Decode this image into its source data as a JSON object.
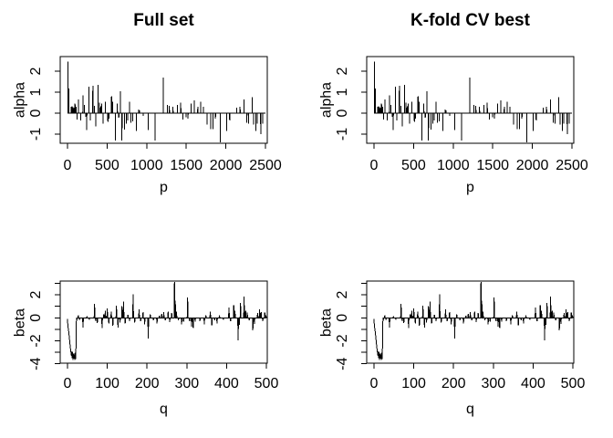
{
  "figure": {
    "background": "#ffffff",
    "stroke_color": "#000000",
    "text_color": "#000000"
  },
  "chart_data": {
    "layout": "2x2-grid",
    "grid": false,
    "legend": "none",
    "panels": [
      {
        "pos": "top-left",
        "title": "Full set",
        "xlabel": "p",
        "ylabel": "alpha",
        "series_ref": "alpha"
      },
      {
        "pos": "top-right",
        "title": "K-fold CV best",
        "xlabel": "p",
        "ylabel": "alpha",
        "series_ref": "alpha"
      },
      {
        "pos": "bottom-left",
        "title": "",
        "xlabel": "q",
        "ylabel": "beta",
        "series_ref": "beta"
      },
      {
        "pos": "bottom-right",
        "title": "",
        "xlabel": "q",
        "ylabel": "beta",
        "series_ref": "beta"
      }
    ],
    "series": {
      "alpha": {
        "type": "line",
        "style": "spike-train (type='h'-like, baseline 0)",
        "xlim": [
          0,
          2500
        ],
        "ylim": [
          -1.43,
          2.7
        ],
        "x_ticks": [
          0,
          500,
          1000,
          1500,
          2000,
          2500
        ],
        "y_ticks": [
          -1,
          0,
          1,
          2
        ],
        "y_tick_labels": [
          "-1",
          "0",
          "1",
          "2"
        ],
        "n_points": 2500,
        "baseline": 0,
        "spikes": [
          [
            5,
            2.45
          ],
          [
            15,
            1.18
          ],
          [
            48,
            0.3
          ],
          [
            60,
            0.32
          ],
          [
            72,
            0.28
          ],
          [
            85,
            0.25
          ],
          [
            95,
            0.45
          ],
          [
            110,
            0.3
          ],
          [
            122,
            -0.3
          ],
          [
            137,
            0.65
          ],
          [
            168,
            -0.35
          ],
          [
            194,
            0.85
          ],
          [
            213,
            0.4
          ],
          [
            230,
            -0.18
          ],
          [
            244,
            -0.8
          ],
          [
            270,
            1.25
          ],
          [
            290,
            -0.35
          ],
          [
            320,
            1.3
          ],
          [
            338,
            0.35
          ],
          [
            357,
            -0.62
          ],
          [
            385,
            1.35
          ],
          [
            402,
            0.5
          ],
          [
            418,
            0.32
          ],
          [
            430,
            0.45
          ],
          [
            449,
            -0.5
          ],
          [
            480,
            0.55
          ],
          [
            510,
            -0.42
          ],
          [
            525,
            -0.25
          ],
          [
            556,
            0.8
          ],
          [
            572,
            0.55
          ],
          [
            605,
            -1.3
          ],
          [
            630,
            0.45
          ],
          [
            648,
            -0.22
          ],
          [
            670,
            1.05
          ],
          [
            688,
            -1.3
          ],
          [
            719,
            -0.78
          ],
          [
            745,
            -0.5
          ],
          [
            762,
            -0.35
          ],
          [
            784,
            0.55
          ],
          [
            800,
            -0.45
          ],
          [
            822,
            -0.4
          ],
          [
            868,
            -0.85
          ],
          [
            898,
            0.18
          ],
          [
            912,
            0.14
          ],
          [
            958,
            -0.12
          ],
          [
            1020,
            -0.8
          ],
          [
            1105,
            -1.3
          ],
          [
            1210,
            1.7
          ],
          [
            1260,
            0.4
          ],
          [
            1287,
            0.35
          ],
          [
            1333,
            0.3
          ],
          [
            1390,
            0.4
          ],
          [
            1431,
            0.5
          ],
          [
            1457,
            -0.3
          ],
          [
            1496,
            -0.2
          ],
          [
            1523,
            -0.25
          ],
          [
            1560,
            0.45
          ],
          [
            1600,
            0.6
          ],
          [
            1645,
            0.3
          ],
          [
            1683,
            0.55
          ],
          [
            1716,
            0.3
          ],
          [
            1763,
            -0.55
          ],
          [
            1808,
            -0.75
          ],
          [
            1839,
            -0.75
          ],
          [
            1869,
            -0.25
          ],
          [
            1930,
            -1.4
          ],
          [
            2010,
            -0.85
          ],
          [
            2048,
            -0.35
          ],
          [
            2136,
            0.25
          ],
          [
            2180,
            0.3
          ],
          [
            2231,
            0.65
          ],
          [
            2266,
            -0.45
          ],
          [
            2288,
            -0.5
          ],
          [
            2333,
            0.75
          ],
          [
            2352,
            -0.55
          ],
          [
            2379,
            -0.85
          ],
          [
            2395,
            -0.5
          ],
          [
            2440,
            -1.0
          ],
          [
            2467,
            -0.5
          ]
        ]
      },
      "beta": {
        "type": "line",
        "style": "spike-train (type='h'-like, baseline 0)",
        "xlim": [
          0,
          500
        ],
        "ylim": [
          -3.95,
          3.2
        ],
        "x_ticks": [
          0,
          100,
          200,
          300,
          400,
          500
        ],
        "y_ticks": [
          -4,
          -3,
          -2,
          -1,
          0,
          1,
          2,
          3
        ],
        "y_tick_labels": [
          "-4",
          "",
          "-2",
          "",
          "0",
          "",
          "2",
          ""
        ],
        "n_points": 500,
        "baseline": 0,
        "spikes": [
          [
            0,
            -0.1
          ],
          [
            1,
            -0.75
          ],
          [
            2,
            -0.95
          ],
          [
            3,
            -1.2
          ],
          [
            4,
            -1.5
          ],
          [
            5,
            -1.85
          ],
          [
            6,
            -2.2
          ],
          [
            7,
            -2.55
          ],
          [
            8,
            -2.85
          ],
          [
            9,
            -3.1
          ],
          [
            10,
            -3.3
          ],
          [
            11,
            -2.9
          ],
          [
            12,
            -3.5
          ],
          [
            13,
            -3.0
          ],
          [
            14,
            -3.65
          ],
          [
            15,
            -3.1
          ],
          [
            16,
            -3.55
          ],
          [
            17,
            -3.2
          ],
          [
            18,
            -3.65
          ],
          [
            19,
            -3.05
          ],
          [
            20,
            -3.6
          ],
          [
            21,
            -3.3
          ],
          [
            22,
            -0.45
          ],
          [
            24,
            -0.15
          ],
          [
            27,
            0.2
          ],
          [
            30,
            -0.12
          ],
          [
            39,
            -0.85
          ],
          [
            49,
            0.15
          ],
          [
            55,
            -0.18
          ],
          [
            68,
            1.2
          ],
          [
            71,
            -0.3
          ],
          [
            75,
            -0.45
          ],
          [
            87,
            -0.9
          ],
          [
            91,
            0.3
          ],
          [
            95,
            0.6
          ],
          [
            100,
            0.8
          ],
          [
            104,
            -0.5
          ],
          [
            110,
            0.55
          ],
          [
            114,
            -0.7
          ],
          [
            123,
            1.05
          ],
          [
            127,
            -0.85
          ],
          [
            132,
            -0.4
          ],
          [
            137,
            1.0
          ],
          [
            141,
            1.4
          ],
          [
            145,
            -0.5
          ],
          [
            152,
            0.25
          ],
          [
            156,
            -0.28
          ],
          [
            165,
            2.05
          ],
          [
            169,
            -0.42
          ],
          [
            180,
            0.75
          ],
          [
            184,
            -0.3
          ],
          [
            190,
            0.5
          ],
          [
            194,
            -0.58
          ],
          [
            203,
            -1.8
          ],
          [
            208,
            0.3
          ],
          [
            216,
            -0.22
          ],
          [
            225,
            -0.5
          ],
          [
            231,
            0.18
          ],
          [
            237,
            0.35
          ],
          [
            242,
            0.48
          ],
          [
            246,
            -0.2
          ],
          [
            253,
            0.52
          ],
          [
            257,
            -0.35
          ],
          [
            262,
            0.4
          ],
          [
            269,
            3.1
          ],
          [
            271,
            1.5
          ],
          [
            274,
            0.52
          ],
          [
            279,
            -0.2
          ],
          [
            287,
            -0.55
          ],
          [
            292,
            -0.32
          ],
          [
            302,
            1.75
          ],
          [
            307,
            -0.3
          ],
          [
            312,
            -0.75
          ],
          [
            316,
            -0.9
          ],
          [
            321,
            -0.32
          ],
          [
            333,
            -0.28
          ],
          [
            344,
            -0.55
          ],
          [
            348,
            0.2
          ],
          [
            359,
            0.55
          ],
          [
            363,
            -0.65
          ],
          [
            370,
            -0.2
          ],
          [
            376,
            -0.48
          ],
          [
            382,
            0.22
          ],
          [
            392,
            -0.18
          ],
          [
            406,
            0.9
          ],
          [
            410,
            -0.3
          ],
          [
            418,
            1.1
          ],
          [
            421,
            0.6
          ],
          [
            429,
            -1.95
          ],
          [
            432,
            -0.6
          ],
          [
            435,
            1.3
          ],
          [
            444,
            1.85
          ],
          [
            448,
            0.62
          ],
          [
            452,
            0.45
          ],
          [
            457,
            -0.22
          ],
          [
            466,
            -1.1
          ],
          [
            470,
            -0.52
          ],
          [
            478,
            0.4
          ],
          [
            483,
            0.75
          ],
          [
            487,
            0.5
          ],
          [
            491,
            -0.3
          ],
          [
            496,
            0.45
          ],
          [
            499,
            0.2
          ]
        ]
      }
    }
  }
}
